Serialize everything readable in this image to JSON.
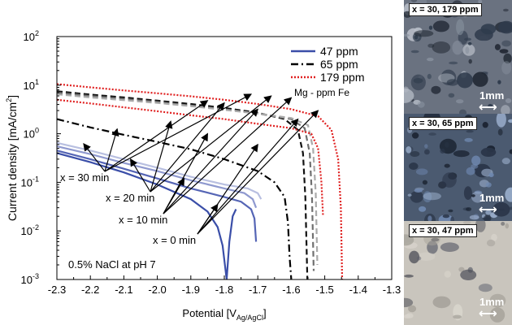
{
  "chart_data": {
    "type": "line",
    "xlabel": "Potential [V",
    "xlabel_subscript": "Ag/AgCl",
    "xlabel_close": "]",
    "ylabel": "Current density [mA/cm",
    "ylabel_sup": "2",
    "ylabel_close": "]",
    "xlim": [
      -2.3,
      -1.3
    ],
    "ylim_log10": [
      -3,
      2
    ],
    "y_scale": "log",
    "x_ticks": [
      "-2.3",
      "-2.2",
      "-2.1",
      "-2.0",
      "-1.9",
      "-1.8",
      "-1.7",
      "-1.6",
      "-1.5",
      "-1.4",
      "-1.3"
    ],
    "y_ticks": [
      {
        "base": "10",
        "exp": "-3",
        "value": 0.001
      },
      {
        "base": "10",
        "exp": "-2",
        "value": 0.01
      },
      {
        "base": "10",
        "exp": "-1",
        "value": 0.1
      },
      {
        "base": "10",
        "exp": "0",
        "value": 1
      },
      {
        "base": "10",
        "exp": "1",
        "value": 10
      },
      {
        "base": "10",
        "exp": "2",
        "value": 100
      }
    ],
    "legend": {
      "position": "top-right",
      "title": "Mg - ppm Fe",
      "entries": [
        {
          "label": "47 ppm",
          "color": "#3a4ea8",
          "dash": "solid"
        },
        {
          "label": "65 ppm",
          "color": "#000000",
          "dash": "dashdot"
        },
        {
          "label": "179 ppm",
          "color": "#e02020",
          "dash": "dotted"
        }
      ]
    },
    "annotations": [
      {
        "text": "x = 30 min",
        "ref": "30"
      },
      {
        "text": "x = 20 min",
        "ref": "20"
      },
      {
        "text": "x = 10 min",
        "ref": "10"
      },
      {
        "text": "x = 0 min",
        "ref": "0"
      }
    ],
    "condition_text": "0.5% NaCl at pH 7",
    "series": [
      {
        "group": "47 ppm",
        "time": "0 min",
        "color": "#3a4ea8",
        "dash": "solid",
        "points": [
          [
            -2.3,
            0.4
          ],
          [
            -2.2,
            0.26
          ],
          [
            -2.1,
            0.16
          ],
          [
            -2.0,
            0.09
          ],
          [
            -1.9,
            0.045
          ],
          [
            -1.85,
            0.025
          ],
          [
            -1.82,
            0.012
          ],
          [
            -1.805,
            0.005
          ],
          [
            -1.793,
            0.001
          ],
          [
            -1.785,
            0.006
          ],
          [
            -1.775,
            0.02
          ],
          [
            -1.765,
            0.028
          ]
        ]
      },
      {
        "group": "47 ppm",
        "time": "10 min",
        "color": "#5565b5",
        "dash": "solid",
        "points": [
          [
            -2.3,
            0.45
          ],
          [
            -2.2,
            0.3
          ],
          [
            -2.1,
            0.19
          ],
          [
            -2.0,
            0.12
          ],
          [
            -1.9,
            0.075
          ],
          [
            -1.8,
            0.05
          ],
          [
            -1.75,
            0.04
          ],
          [
            -1.72,
            0.028
          ],
          [
            -1.71,
            0.018
          ],
          [
            -1.705,
            0.006
          ]
        ]
      },
      {
        "group": "47 ppm",
        "time": "20 min",
        "color": "#8f99cf",
        "dash": "solid",
        "points": [
          [
            -2.3,
            0.55
          ],
          [
            -2.2,
            0.38
          ],
          [
            -2.1,
            0.25
          ],
          [
            -2.0,
            0.17
          ],
          [
            -1.9,
            0.11
          ],
          [
            -1.8,
            0.075
          ],
          [
            -1.74,
            0.06
          ],
          [
            -1.715,
            0.045
          ],
          [
            -1.705,
            0.03
          ]
        ]
      },
      {
        "group": "47 ppm",
        "time": "30 min",
        "color": "#b8bfe0",
        "dash": "solid",
        "points": [
          [
            -2.3,
            0.65
          ],
          [
            -2.2,
            0.45
          ],
          [
            -2.1,
            0.3
          ],
          [
            -2.0,
            0.2
          ],
          [
            -1.9,
            0.13
          ],
          [
            -1.8,
            0.09
          ],
          [
            -1.73,
            0.075
          ],
          [
            -1.7,
            0.06
          ],
          [
            -1.69,
            0.045
          ]
        ]
      },
      {
        "group": "65 ppm",
        "time": "0 min",
        "color": "#000000",
        "dash": "dashdot",
        "points": [
          [
            -2.3,
            2.0
          ],
          [
            -2.2,
            1.35
          ],
          [
            -2.1,
            0.95
          ],
          [
            -2.0,
            0.68
          ],
          [
            -1.9,
            0.48
          ],
          [
            -1.8,
            0.3
          ],
          [
            -1.7,
            0.17
          ],
          [
            -1.65,
            0.1
          ],
          [
            -1.62,
            0.05
          ],
          [
            -1.61,
            0.015
          ],
          [
            -1.605,
            0.003
          ],
          [
            -1.6,
            0.001
          ]
        ]
      },
      {
        "group": "65 ppm",
        "time": "10 min",
        "color": "#111111",
        "dash": "dashed",
        "points": [
          [
            -2.3,
            7.5
          ],
          [
            -2.2,
            6.4
          ],
          [
            -2.1,
            5.6
          ],
          [
            -2.0,
            4.8
          ],
          [
            -1.9,
            4.1
          ],
          [
            -1.8,
            3.4
          ],
          [
            -1.7,
            2.7
          ],
          [
            -1.62,
            2.0
          ],
          [
            -1.58,
            1.2
          ],
          [
            -1.565,
            0.4
          ],
          [
            -1.558,
            0.05
          ],
          [
            -1.552,
            0.001
          ]
        ]
      },
      {
        "group": "65 ppm",
        "time": "20 min",
        "color": "#707070",
        "dash": "dashed",
        "points": [
          [
            -2.3,
            7.0
          ],
          [
            -2.2,
            6.0
          ],
          [
            -2.1,
            5.2
          ],
          [
            -2.0,
            4.5
          ],
          [
            -1.9,
            3.8
          ],
          [
            -1.8,
            3.2
          ],
          [
            -1.7,
            2.6
          ],
          [
            -1.6,
            2.0
          ],
          [
            -1.56,
            1.3
          ],
          [
            -1.545,
            0.4
          ],
          [
            -1.538,
            0.05
          ],
          [
            -1.533,
            0.0015
          ]
        ]
      },
      {
        "group": "65 ppm",
        "time": "30 min",
        "color": "#aaaaaa",
        "dash": "dashed",
        "points": [
          [
            -2.3,
            6.5
          ],
          [
            -2.2,
            5.6
          ],
          [
            -2.1,
            4.9
          ],
          [
            -2.0,
            4.3
          ],
          [
            -1.9,
            3.7
          ],
          [
            -1.8,
            3.1
          ],
          [
            -1.7,
            2.6
          ],
          [
            -1.6,
            2.1
          ],
          [
            -1.55,
            1.5
          ],
          [
            -1.535,
            0.5
          ],
          [
            -1.527,
            0.06
          ],
          [
            -1.522,
            0.002
          ]
        ]
      },
      {
        "group": "179 ppm",
        "time": "30 min",
        "color": "#e02020",
        "dash": "dotted",
        "points": [
          [
            -2.3,
            10.5
          ],
          [
            -2.2,
            9.0
          ],
          [
            -2.1,
            7.8
          ],
          [
            -2.0,
            6.8
          ],
          [
            -1.9,
            5.9
          ],
          [
            -1.8,
            5.0
          ],
          [
            -1.7,
            4.1
          ],
          [
            -1.6,
            3.2
          ],
          [
            -1.52,
            2.3
          ],
          [
            -1.48,
            1.2
          ],
          [
            -1.46,
            0.3
          ],
          [
            -1.452,
            0.03
          ],
          [
            -1.448,
            0.001
          ]
        ]
      },
      {
        "group": "179 ppm",
        "time": "0 min",
        "color": "#e02020",
        "dash": "dotted",
        "points": [
          [
            -2.3,
            5.0
          ],
          [
            -2.2,
            4.2
          ],
          [
            -2.1,
            3.5
          ],
          [
            -2.0,
            2.9
          ],
          [
            -1.9,
            2.4
          ],
          [
            -1.8,
            2.0
          ],
          [
            -1.7,
            1.6
          ],
          [
            -1.6,
            1.3
          ],
          [
            -1.54,
            1.0
          ],
          [
            -1.52,
            0.5
          ],
          [
            -1.51,
            0.1
          ],
          [
            -1.505,
            0.02
          ]
        ]
      }
    ]
  },
  "micrographs": [
    {
      "tag": "x = 30, 179 ppm",
      "scale": "1mm",
      "scale_arrow": "⟷"
    },
    {
      "tag": "x = 30, 65 ppm",
      "scale": "1mm",
      "scale_arrow": "⟷"
    },
    {
      "tag": "x = 30, 47 ppm",
      "scale": "1mm",
      "scale_arrow": "⟷"
    }
  ]
}
